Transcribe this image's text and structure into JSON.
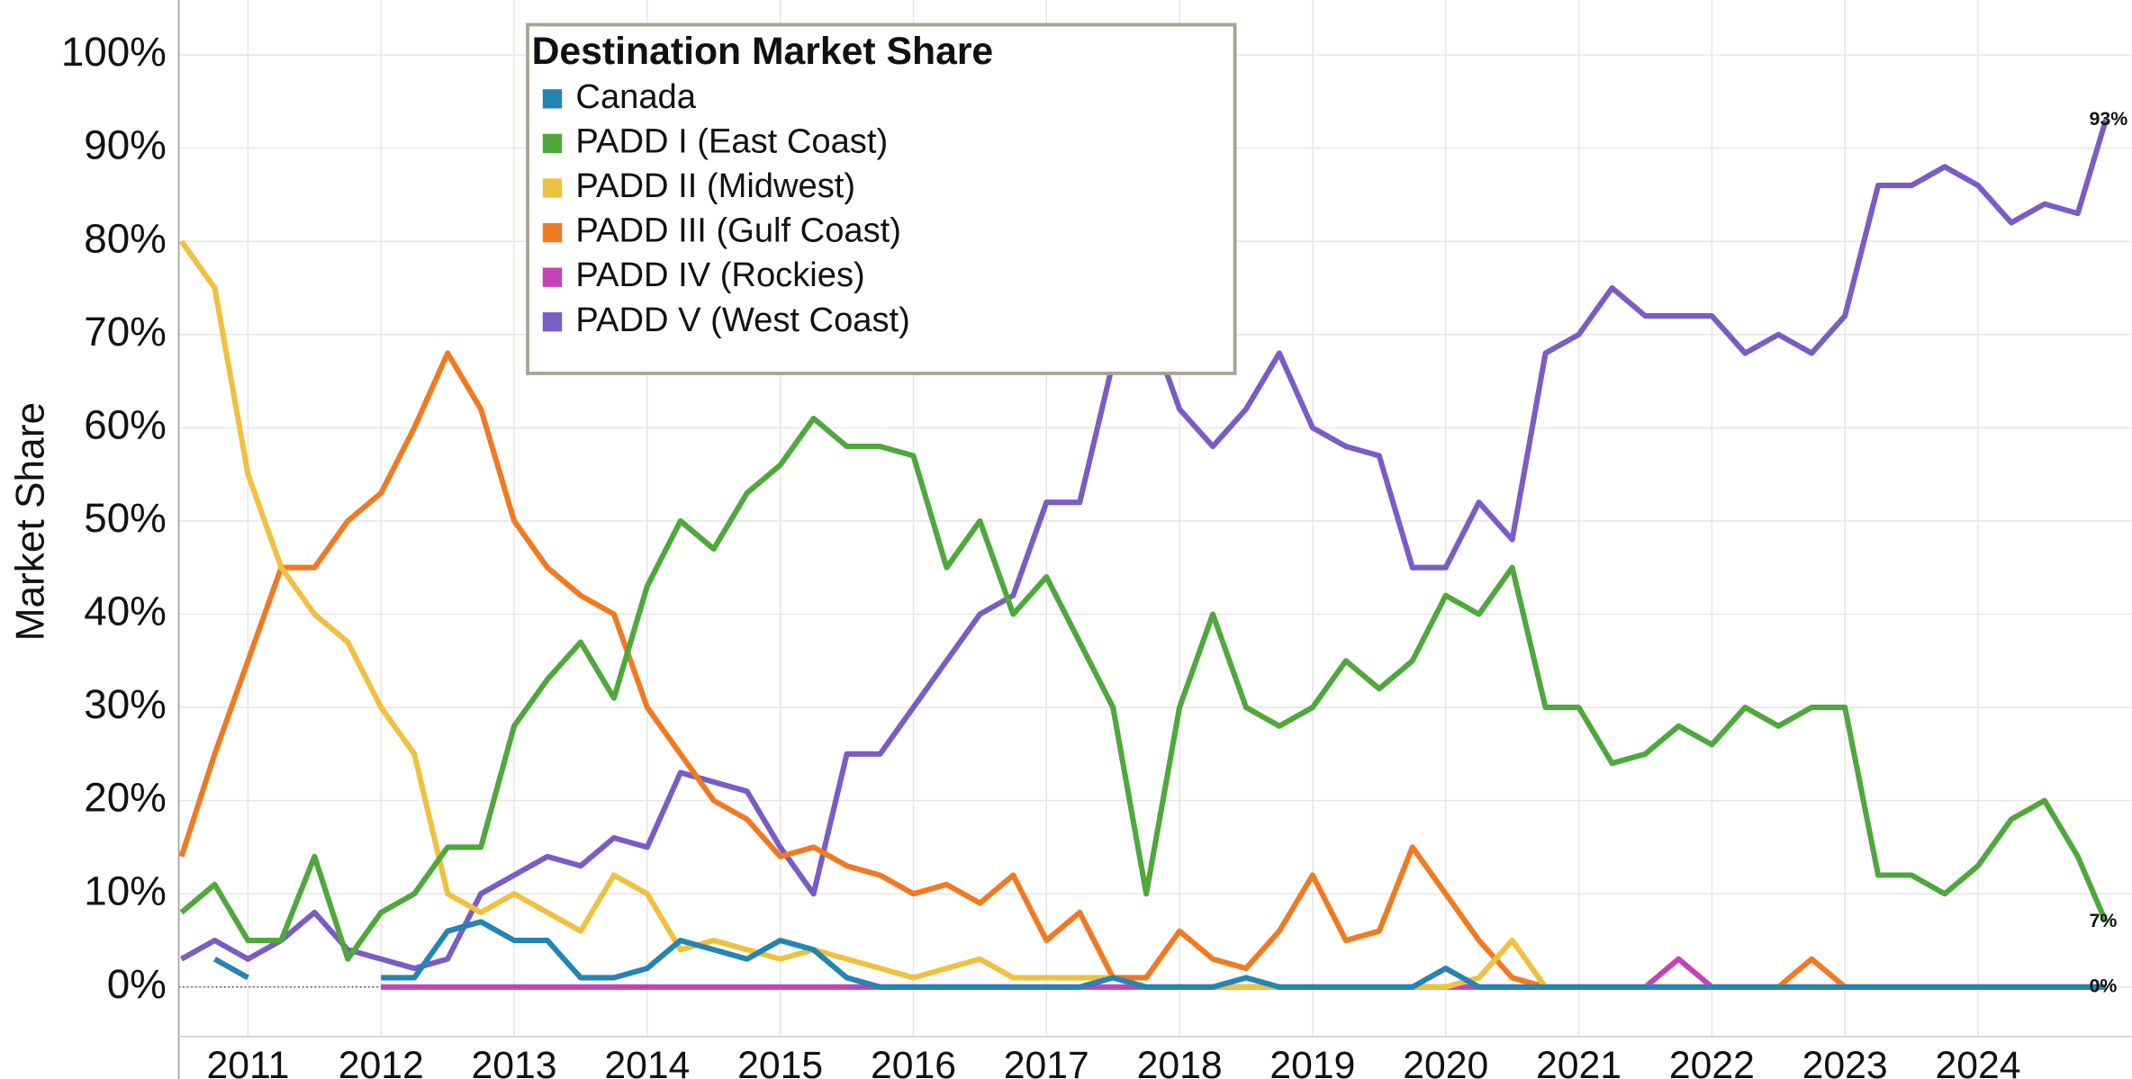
{
  "chart_data": {
    "type": "line",
    "y_label": "Market Share",
    "legend_title": "Destination Market Share",
    "x": [
      2010.5,
      2010.75,
      2011,
      2011.25,
      2011.5,
      2011.75,
      2012,
      2012.25,
      2012.5,
      2012.75,
      2013,
      2013.25,
      2013.5,
      2013.75,
      2014,
      2014.25,
      2014.5,
      2014.75,
      2015,
      2015.25,
      2015.5,
      2015.75,
      2016,
      2016.25,
      2016.5,
      2016.75,
      2017,
      2017.25,
      2017.5,
      2017.75,
      2018,
      2018.25,
      2018.5,
      2018.75,
      2019,
      2019.25,
      2019.5,
      2019.75,
      2020,
      2020.25,
      2020.5,
      2020.75,
      2021,
      2021.25,
      2021.5,
      2021.75,
      2022,
      2022.25,
      2022.5,
      2022.75,
      2023,
      2023.25,
      2023.5,
      2023.75,
      2024,
      2024.25,
      2024.5,
      2024.75,
      2024.96
    ],
    "xlim": [
      2010.48,
      2024.98
    ],
    "xticks": [
      2011,
      2012,
      2013,
      2014,
      2015,
      2016,
      2017,
      2018,
      2019,
      2020,
      2021,
      2022,
      2023,
      2024
    ],
    "ylim": [
      0,
      100
    ],
    "yticks": [
      {
        "value": 0,
        "label": "0%"
      },
      {
        "value": 10,
        "label": "10%"
      },
      {
        "value": 20,
        "label": "20%"
      },
      {
        "value": 30,
        "label": "30%"
      },
      {
        "value": 40,
        "label": "40%"
      },
      {
        "value": 50,
        "label": "50%"
      },
      {
        "value": 60,
        "label": "60%"
      },
      {
        "value": 70,
        "label": "70%"
      },
      {
        "value": 80,
        "label": "80%"
      },
      {
        "value": 90,
        "label": "90%"
      },
      {
        "value": 100,
        "label": "100%"
      }
    ],
    "grid": true,
    "series": [
      {
        "name": "Canada",
        "color": "#2484b4",
        "values": [
          null,
          3,
          1,
          null,
          null,
          null,
          1,
          1,
          6,
          7,
          5,
          5,
          1,
          1,
          2,
          5,
          4,
          3,
          5,
          4,
          1,
          0,
          0,
          0,
          0,
          0,
          0,
          0,
          1,
          0,
          0,
          0,
          1,
          0,
          0,
          0,
          0,
          0,
          2,
          0,
          0,
          0,
          0,
          0,
          0,
          0,
          0,
          0,
          0,
          0,
          0,
          0,
          0,
          0,
          0,
          0,
          0,
          0,
          0
        ],
        "value_labels": [
          null,
          null,
          null,
          null,
          null,
          null,
          null,
          null,
          null,
          null,
          null,
          null,
          null,
          null,
          null,
          null,
          null,
          null,
          null,
          null,
          null,
          null,
          null,
          null,
          null,
          null,
          null,
          null,
          null,
          null,
          null,
          null,
          null,
          null,
          null,
          null,
          null,
          null,
          null,
          null,
          null,
          null,
          null,
          null,
          null,
          null,
          null,
          null,
          null,
          null,
          null,
          null,
          null,
          null,
          null,
          null,
          null,
          null,
          "0%"
        ]
      },
      {
        "name": "PADD I (East Coast)",
        "color": "#4ea83c",
        "values": [
          8,
          11,
          5,
          5,
          14,
          3,
          8,
          10,
          15,
          15,
          28,
          33,
          37,
          31,
          43,
          50,
          47,
          53,
          56,
          61,
          58,
          58,
          57,
          45,
          50,
          40,
          44,
          37,
          30,
          10,
          30,
          40,
          30,
          28,
          30,
          35,
          32,
          35,
          42,
          40,
          45,
          30,
          30,
          24,
          25,
          28,
          26,
          30,
          28,
          30,
          30,
          12,
          12,
          10,
          13,
          18,
          20,
          14,
          7
        ],
        "value_labels": [
          null,
          null,
          null,
          null,
          null,
          null,
          null,
          null,
          null,
          null,
          null,
          null,
          null,
          null,
          null,
          null,
          null,
          null,
          null,
          null,
          null,
          null,
          null,
          null,
          null,
          null,
          null,
          null,
          null,
          null,
          null,
          null,
          null,
          null,
          null,
          null,
          null,
          null,
          null,
          null,
          null,
          null,
          null,
          null,
          null,
          null,
          null,
          null,
          null,
          null,
          null,
          null,
          null,
          null,
          null,
          null,
          null,
          null,
          "7%"
        ]
      },
      {
        "name": "PADD II (Midwest)",
        "color": "#f0c040",
        "values": [
          80,
          75,
          55,
          45,
          40,
          37,
          30,
          25,
          10,
          8,
          10,
          8,
          6,
          12,
          10,
          4,
          5,
          4,
          3,
          4,
          3,
          2,
          1,
          2,
          3,
          1,
          1,
          1,
          1,
          0,
          0,
          0,
          0,
          0,
          0,
          0,
          0,
          0,
          0,
          1,
          5,
          0,
          0,
          0,
          0,
          0,
          0,
          0,
          0,
          0,
          0,
          0,
          0,
          0,
          0,
          0,
          0,
          0,
          0
        ]
      },
      {
        "name": "PADD III (Gulf Coast)",
        "color": "#f07a22",
        "values": [
          14,
          25,
          35,
          45,
          45,
          50,
          53,
          60,
          68,
          62,
          50,
          45,
          42,
          40,
          30,
          25,
          20,
          18,
          14,
          15,
          13,
          12,
          10,
          11,
          9,
          12,
          5,
          8,
          1,
          1,
          6,
          3,
          2,
          6,
          12,
          5,
          6,
          15,
          10,
          5,
          1,
          0,
          0,
          0,
          0,
          0,
          0,
          0,
          0,
          3,
          0,
          0,
          0,
          0,
          0,
          0,
          0,
          0,
          0
        ]
      },
      {
        "name": "PADD IV (Rockies)",
        "color": "#c443b4",
        "values": [
          null,
          null,
          null,
          null,
          null,
          null,
          0,
          0,
          0,
          0,
          0,
          0,
          0,
          0,
          0,
          0,
          0,
          0,
          0,
          0,
          0,
          0,
          0,
          0,
          0,
          0,
          0,
          0,
          0,
          0,
          0,
          0,
          0,
          0,
          0,
          0,
          0,
          0,
          0,
          0,
          0,
          0,
          0,
          0,
          0,
          3,
          0,
          0,
          0,
          0,
          0,
          0,
          0,
          0,
          0,
          0,
          0,
          0,
          0
        ]
      },
      {
        "name": "PADD V (West Coast)",
        "color": "#7a5cc6",
        "values": [
          3,
          5,
          3,
          5,
          8,
          4,
          3,
          2,
          3,
          10,
          12,
          14,
          13,
          16,
          15,
          23,
          22,
          21,
          15,
          10,
          25,
          25,
          30,
          35,
          40,
          42,
          52,
          52,
          67,
          72,
          62,
          58,
          62,
          68,
          60,
          58,
          57,
          45,
          45,
          52,
          48,
          68,
          70,
          75,
          72,
          72,
          72,
          68,
          70,
          68,
          72,
          86,
          86,
          88,
          86,
          82,
          84,
          83,
          93
        ],
        "value_labels": [
          null,
          null,
          null,
          null,
          null,
          null,
          null,
          null,
          null,
          null,
          null,
          null,
          null,
          null,
          null,
          null,
          null,
          null,
          null,
          null,
          null,
          null,
          null,
          null,
          null,
          null,
          null,
          null,
          null,
          null,
          null,
          null,
          null,
          null,
          null,
          null,
          null,
          null,
          null,
          null,
          null,
          null,
          null,
          null,
          null,
          null,
          null,
          null,
          null,
          null,
          null,
          null,
          null,
          null,
          null,
          null,
          null,
          null,
          "93%"
        ]
      }
    ]
  }
}
